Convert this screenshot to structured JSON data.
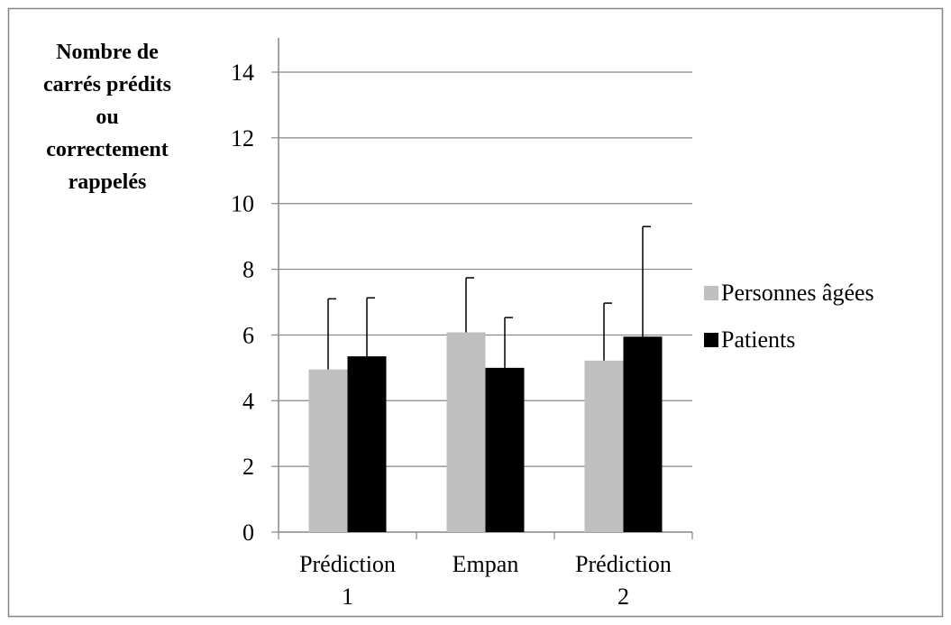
{
  "chart_data": {
    "type": "bar",
    "title": "",
    "xlabel": "",
    "ylabel": "Nombre de carrés prédits ou correctement rappelés",
    "ylabel_lines": [
      "Nombre de",
      "carrés prédits",
      "ou",
      "correctement",
      "rappelés"
    ],
    "categories": [
      "Prédiction 1",
      "Empan",
      "Prédiction 2"
    ],
    "category_lines": [
      [
        "Prédiction",
        "1"
      ],
      [
        "Empan"
      ],
      [
        "Prédiction",
        "2"
      ]
    ],
    "series": [
      {
        "name": "Personnes âgées",
        "color": "#bfbfbf",
        "values": [
          4.95,
          6.08,
          5.22
        ],
        "error": [
          2.15,
          1.66,
          1.75
        ]
      },
      {
        "name": "Patients",
        "color": "#000000",
        "values": [
          5.35,
          5.0,
          5.95
        ],
        "error": [
          1.78,
          1.53,
          3.35
        ]
      }
    ],
    "ylim": [
      0,
      14
    ],
    "yticks": [
      0,
      2,
      4,
      6,
      8,
      10,
      12,
      14
    ],
    "grid": true,
    "legend_position": "right"
  }
}
